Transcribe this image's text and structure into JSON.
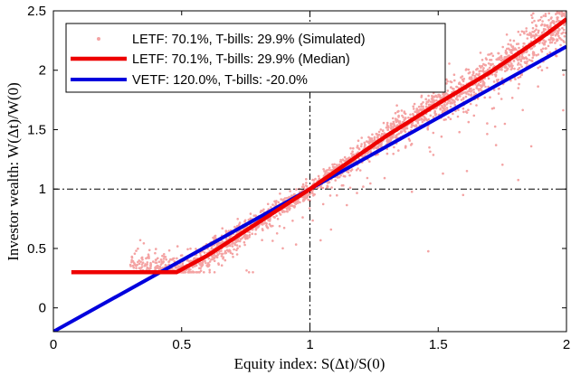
{
  "chart_data": {
    "type": "line",
    "title": "",
    "xlabel": "Equity index: S(Δt)/S(0)",
    "ylabel": "Investor wealth: W(Δt)/W(0)",
    "xlim": [
      0,
      2
    ],
    "ylim": [
      -0.2,
      2.5
    ],
    "xticks": [
      0,
      0.5,
      1,
      1.5,
      2
    ],
    "xtick_labels": [
      "0",
      "0.5",
      "1",
      "1.5",
      "2"
    ],
    "yticks": [
      0,
      0.5,
      1,
      1.5,
      2,
      2.5
    ],
    "ytick_labels": [
      "0",
      "0.5",
      "1",
      "1.5",
      "2",
      "2.5"
    ],
    "reference_lines": {
      "x": 1,
      "y": 1,
      "style": "dash-dot"
    },
    "legend_position": "top-left",
    "series": [
      {
        "name": "LETF: 70.1%, T-bills: 29.9% (Simulated)",
        "kind": "scatter",
        "color": "#f4a3a3",
        "x_range": [
          0.3,
          2.0
        ],
        "floor": 0.3
      },
      {
        "name": "LETF: 70.1%, T-bills: 29.9% (Median)",
        "kind": "line",
        "color": "#ee0000",
        "x": [
          0.07,
          0.48,
          0.6,
          0.8,
          1.0,
          1.2,
          1.3,
          1.5,
          1.7,
          1.9,
          2.0
        ],
        "y": [
          0.3,
          0.3,
          0.44,
          0.72,
          1.0,
          1.3,
          1.45,
          1.72,
          1.98,
          2.27,
          2.43
        ]
      },
      {
        "name": "VETF: 120.0%, T-bills: -20.0%",
        "kind": "line",
        "color": "#0000dd",
        "x": [
          0,
          2
        ],
        "y": [
          -0.2,
          2.2
        ]
      }
    ]
  }
}
